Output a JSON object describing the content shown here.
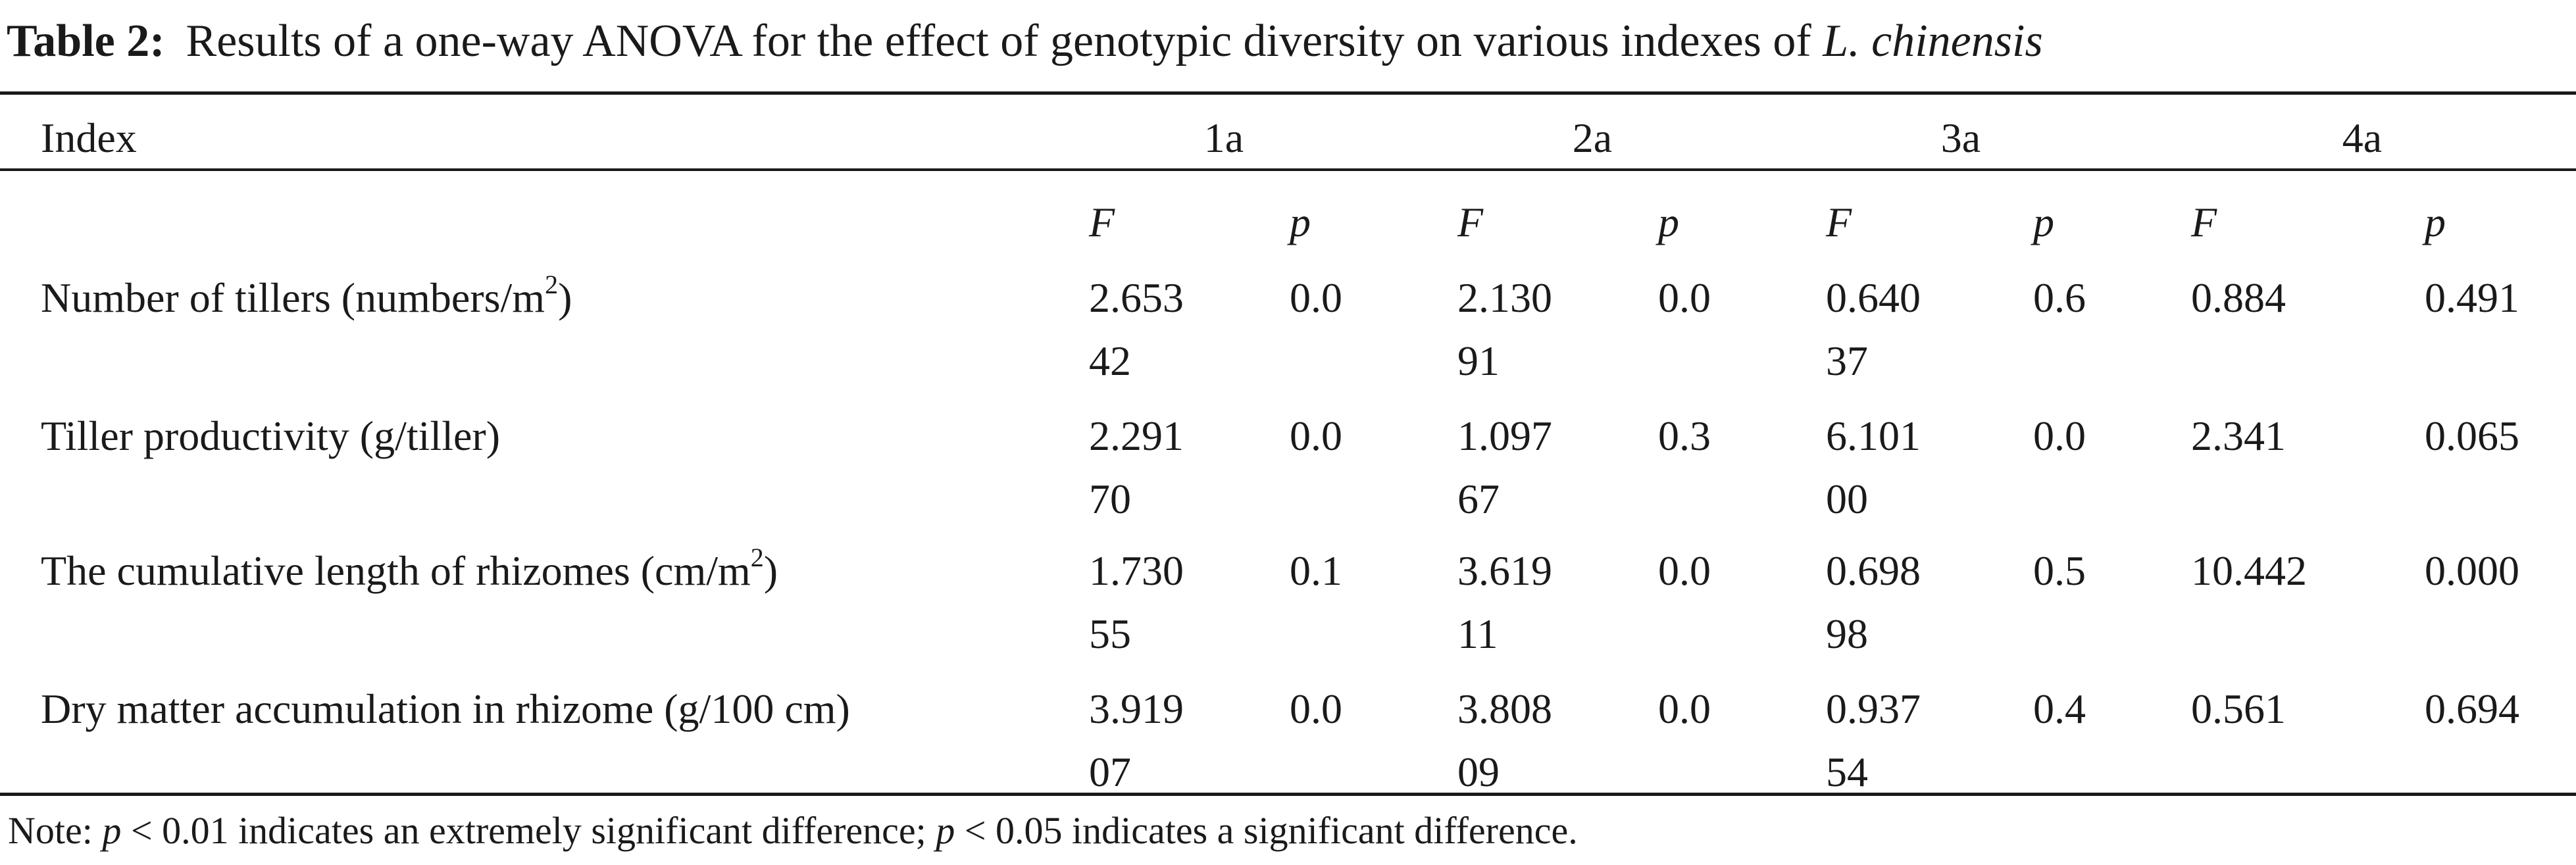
{
  "caption": {
    "label": "Table 2:",
    "text": "Results of a one-way ANOVA for the effect of genotypic diversity on various indexes of",
    "species": "L. chinensis"
  },
  "table": {
    "index_header": "Index",
    "groups": [
      "1a",
      "2a",
      "3a",
      "4a"
    ],
    "sub_headers": [
      "F",
      "p",
      "F",
      "p",
      "F",
      "p",
      "F",
      "p"
    ],
    "rows": [
      {
        "label": "Number of tillers (numbers/m",
        "label_sup": "2",
        "label_tail": ")",
        "values": [
          {
            "l1": "2.653",
            "l2": "42"
          },
          {
            "l1": "0.0",
            "l2": ""
          },
          {
            "l1": "2.130",
            "l2": "91"
          },
          {
            "l1": "0.0",
            "l2": ""
          },
          {
            "l1": "0.640",
            "l2": "37"
          },
          {
            "l1": "0.6",
            "l2": ""
          },
          {
            "l1": "0.884",
            "l2": ""
          },
          {
            "l1": "0.491",
            "l2": ""
          }
        ]
      },
      {
        "label": "Tiller productivity (g/tiller)",
        "label_sup": "",
        "label_tail": "",
        "values": [
          {
            "l1": "2.291",
            "l2": "70"
          },
          {
            "l1": "0.0",
            "l2": ""
          },
          {
            "l1": "1.097",
            "l2": "67"
          },
          {
            "l1": "0.3",
            "l2": ""
          },
          {
            "l1": "6.101",
            "l2": "00"
          },
          {
            "l1": "0.0",
            "l2": ""
          },
          {
            "l1": "2.341",
            "l2": ""
          },
          {
            "l1": "0.065",
            "l2": ""
          }
        ]
      },
      {
        "label": "The cumulative length of rhizomes (cm/m",
        "label_sup": "2",
        "label_tail": ")",
        "values": [
          {
            "l1": "1.730",
            "l2": "55"
          },
          {
            "l1": "0.1",
            "l2": ""
          },
          {
            "l1": "3.619",
            "l2": "11"
          },
          {
            "l1": "0.0",
            "l2": ""
          },
          {
            "l1": "0.698",
            "l2": "98"
          },
          {
            "l1": "0.5",
            "l2": ""
          },
          {
            "l1": "10.442",
            "l2": ""
          },
          {
            "l1": "0.000",
            "l2": ""
          }
        ]
      },
      {
        "label": "Dry matter accumulation in rhizome (g/100 cm)",
        "label_sup": "",
        "label_tail": "",
        "values": [
          {
            "l1": "3.919",
            "l2": "07"
          },
          {
            "l1": "0.0",
            "l2": ""
          },
          {
            "l1": "3.808",
            "l2": "09"
          },
          {
            "l1": "0.0",
            "l2": ""
          },
          {
            "l1": "0.937",
            "l2": "54"
          },
          {
            "l1": "0.4",
            "l2": ""
          },
          {
            "l1": "0.561",
            "l2": ""
          },
          {
            "l1": "0.694",
            "l2": ""
          }
        ]
      }
    ]
  },
  "note": {
    "prefix": "Note:",
    "p1": "p",
    "mid1": "< 0.01 indicates an extremely significant difference;",
    "p2": "p",
    "mid2": "< 0.05 indicates a significant difference."
  }
}
